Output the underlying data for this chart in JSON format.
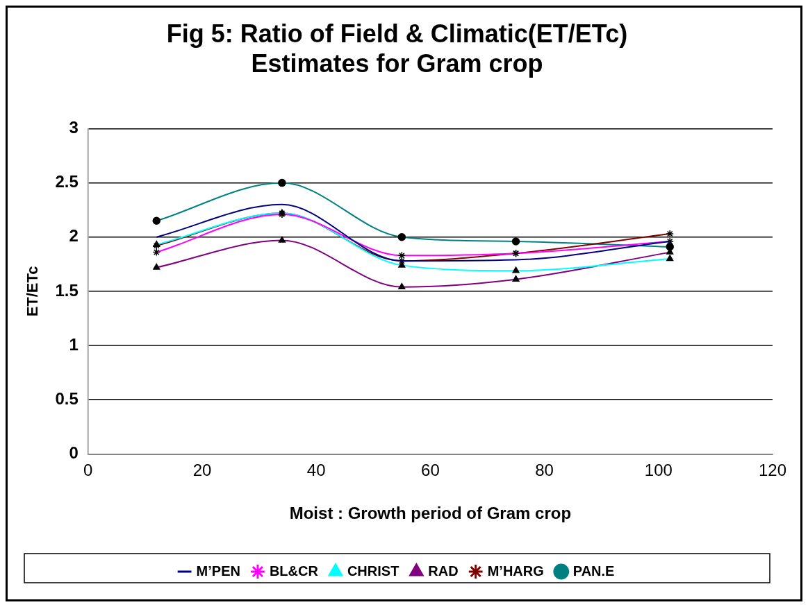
{
  "chart_data": {
    "type": "line",
    "title": [
      "Fig 5: Ratio of Field & Climatic(ET/ETc)",
      "Estimates for Gram crop"
    ],
    "xlabel": "Moist : Growth period of Gram crop",
    "ylabel": "ET/ETc",
    "x": [
      12,
      34,
      55,
      75,
      102
    ],
    "series": [
      {
        "name": "M’PEN",
        "color": "#000080",
        "marker": "none",
        "values": [
          2.0,
          2.3,
          1.78,
          1.79,
          1.96
        ]
      },
      {
        "name": "BL&CR",
        "color": "#ff00ff",
        "marker": "cross",
        "values": [
          1.86,
          2.21,
          1.83,
          1.85,
          1.96
        ]
      },
      {
        "name": "CHRIST",
        "color": "#00ffff",
        "marker": "triangle",
        "values": [
          1.93,
          2.22,
          1.74,
          1.69,
          1.8
        ]
      },
      {
        "name": "RAD",
        "color": "#800080",
        "marker": "triangle",
        "values": [
          1.72,
          1.97,
          1.54,
          1.61,
          1.86
        ]
      },
      {
        "name": "M’HARG",
        "color": "#800000",
        "marker": "cross",
        "values": [
          1.92,
          2.22,
          1.78,
          1.85,
          2.03
        ]
      },
      {
        "name": "PAN.E",
        "color": "#008080",
        "marker": "circle",
        "values": [
          2.15,
          2.5,
          2.0,
          1.96,
          1.91
        ]
      }
    ],
    "xlim": [
      0,
      120
    ],
    "xticks": [
      0,
      20,
      40,
      60,
      80,
      100,
      120
    ],
    "ylim": [
      0,
      3
    ],
    "yticks": [
      0,
      0.5,
      1,
      1.5,
      2,
      2.5,
      3
    ],
    "grid": "y",
    "legend": "bottom",
    "line_style": "solid"
  }
}
